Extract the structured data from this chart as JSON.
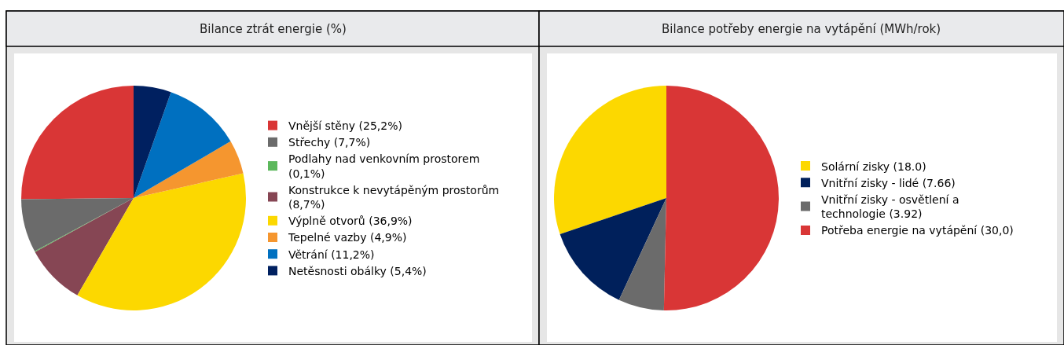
{
  "chart_data": [
    {
      "type": "pie",
      "title": "Bilance ztrát energie (%)",
      "legend": "right",
      "categories": [
        "Vnější stěny (25,2%)",
        "Střechy (7,7%)",
        "Podlahy nad venkovním prostorem (0,1%)",
        "Konstrukce k nevytápěným prostorům (8,7%)",
        "Výplně otvorů (36,9%)",
        "Tepelné vazby (4,9%)",
        "Větrání (11,2%)",
        "Netěsnosti obálky (5,4%)"
      ],
      "values": [
        25.2,
        7.7,
        0.1,
        8.7,
        36.9,
        4.9,
        11.2,
        5.4
      ],
      "colors": [
        "#d93636",
        "#6b6b6b",
        "#5cb85c",
        "#864654",
        "#fcd800",
        "#f5962f",
        "#0070c0",
        "#002060"
      ]
    },
    {
      "type": "pie",
      "title": "Bilance potřeby energie na vytápění (MWh/rok)",
      "legend": "right",
      "categories": [
        "Solární zisky (18.0)",
        "Vnitřní zisky - lidé (7.66)",
        "Vnitřní zisky - osvětlení a technologie (3.92)",
        "Potřeba energie na vytápění (30,0)"
      ],
      "values": [
        18.0,
        7.66,
        3.92,
        30.0
      ],
      "colors": [
        "#fcd800",
        "#00205b",
        "#6b6b6b",
        "#d93636"
      ]
    }
  ]
}
